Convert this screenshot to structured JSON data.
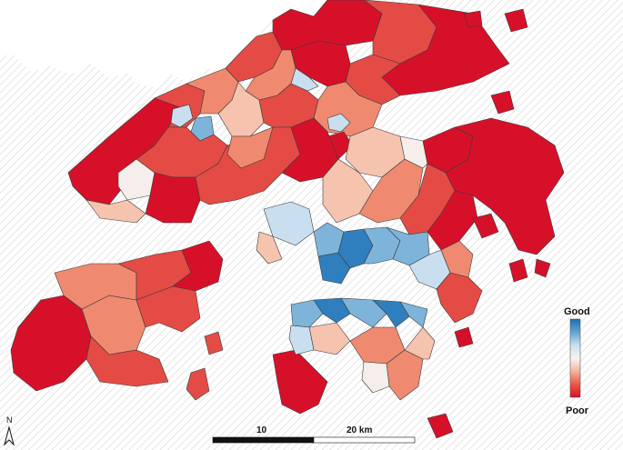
{
  "legend": {
    "top_label": "Good",
    "bottom_label": "Poor",
    "gradient": [
      "#1f6fb4",
      "#62a3d0",
      "#c8dfee",
      "#f7f4f2",
      "#f4b59c",
      "#e9584a",
      "#d7102a"
    ]
  },
  "scale_bar": {
    "labels": [
      "10",
      "20 km"
    ]
  },
  "north_arrow": {
    "label": "N"
  },
  "colors": {
    "poor": "#d7102a",
    "poor_mid": "#e54b45",
    "mid_poor": "#ef8a70",
    "light_poor": "#f6c3ae",
    "neutral": "#f5eeea",
    "light_good": "#c9dff0",
    "mid_good": "#7fb4da",
    "good": "#2f7fbf",
    "hatch": "#d9d9d9"
  }
}
